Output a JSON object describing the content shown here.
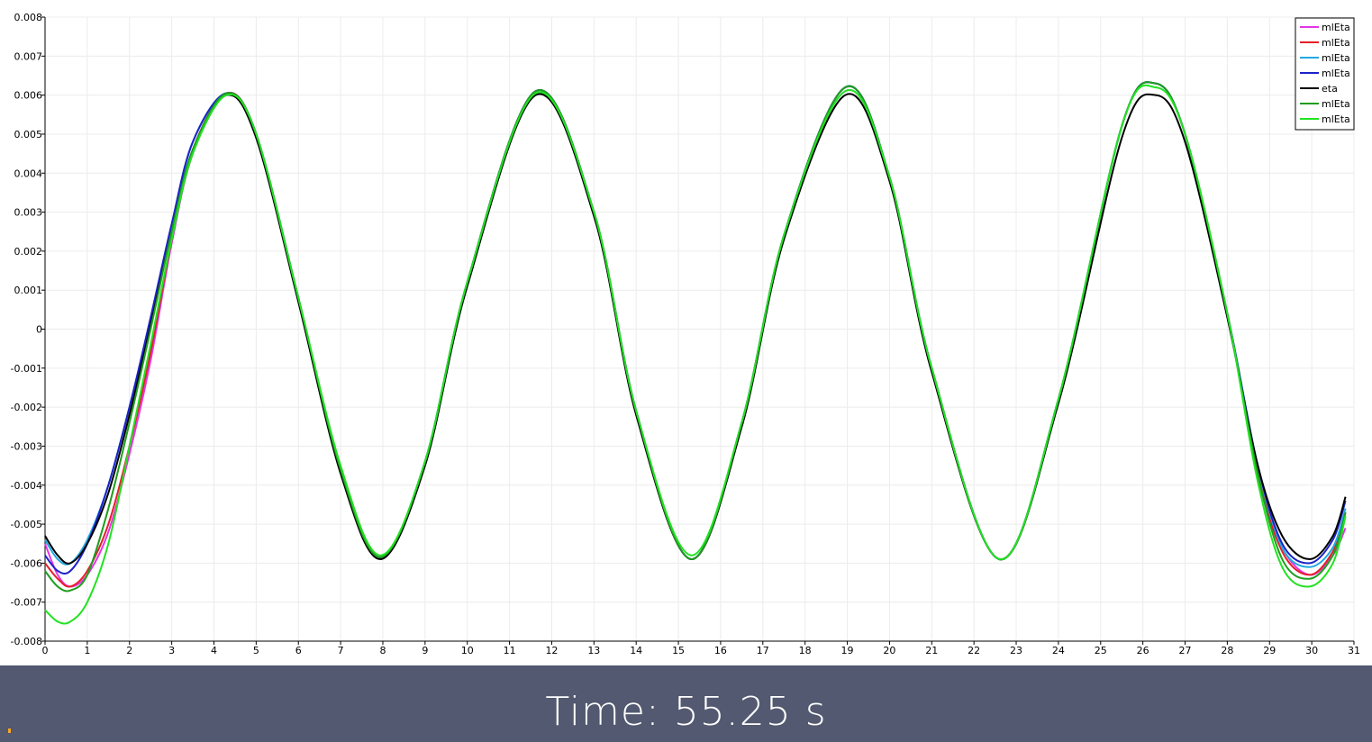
{
  "chart_data": {
    "type": "line",
    "title": "",
    "xlabel": "",
    "ylabel": "",
    "xlim": [
      0,
      31
    ],
    "ylim": [
      -0.008,
      0.008
    ],
    "xticks": [
      0,
      1,
      2,
      3,
      4,
      5,
      6,
      7,
      8,
      9,
      10,
      11,
      12,
      13,
      14,
      15,
      16,
      17,
      18,
      19,
      20,
      21,
      22,
      23,
      24,
      25,
      26,
      27,
      28,
      29,
      30,
      31
    ],
    "xtick_labels": [
      "0",
      "1",
      "2",
      "3",
      "4",
      "5",
      "6",
      "7",
      "8",
      "9",
      "10",
      "11",
      "12",
      "13",
      "14",
      "15",
      "16",
      "17",
      "18",
      "19",
      "20",
      "21",
      "22",
      "23",
      "24",
      "25",
      "26",
      "27",
      "28",
      "29",
      "30",
      "31"
    ],
    "yticks": [
      -0.008,
      -0.007,
      -0.006,
      -0.005,
      -0.004,
      -0.003,
      -0.002,
      -0.001,
      0,
      0.001,
      0.002,
      0.003,
      0.004,
      0.005,
      0.006,
      0.007,
      0.008
    ],
    "ytick_labels": [
      "-0.008",
      "-0.007",
      "-0.006",
      "-0.005",
      "-0.004",
      "-0.003",
      "-0.002",
      "-0.001",
      "0",
      "0.001",
      "0.002",
      "0.003",
      "0.004",
      "0.005",
      "0.006",
      "0.007",
      "0.008"
    ],
    "grid": true,
    "legend_position": "top-right",
    "series": [
      {
        "name": "mlEta",
        "color": "#e535e5",
        "x": [
          0,
          0.3,
          0.6,
          1.0,
          1.5,
          2.0,
          2.5,
          3.0,
          3.5,
          4.3,
          5.0,
          6.0,
          7.0,
          7.95,
          9.0,
          10.0,
          11.62,
          13.0,
          14.0,
          15.3,
          16.5,
          17.5,
          18.95,
          20.0,
          21.0,
          22.6,
          24.0,
          25.5,
          26.3,
          27.0,
          28.0,
          28.7,
          29.3,
          29.95,
          30.5,
          30.8
        ],
        "y": [
          -0.0055,
          -0.0063,
          -0.0066,
          -0.0063,
          -0.0052,
          -0.0032,
          -0.0008,
          0.0022,
          0.0045,
          0.00605,
          0.005,
          0.0008,
          -0.0036,
          -0.00585,
          -0.0034,
          0.0012,
          0.0061,
          0.003,
          -0.0021,
          -0.0059,
          -0.0024,
          0.0024,
          0.0062,
          0.0039,
          -0.001,
          -0.0059,
          -0.0018,
          0.0052,
          0.0063,
          0.005,
          0.0004,
          -0.0037,
          -0.0056,
          -0.0063,
          -0.0058,
          -0.0051
        ]
      },
      {
        "name": "mlEta",
        "color": "#e5202a",
        "x": [
          0,
          0.3,
          0.6,
          1.0,
          1.5,
          2.0,
          2.5,
          3.0,
          3.5,
          4.3,
          5.0,
          6.0,
          7.0,
          7.95,
          9.0,
          10.0,
          11.62,
          13.0,
          14.0,
          15.3,
          16.5,
          17.5,
          18.95,
          20.0,
          21.0,
          22.6,
          24.0,
          25.5,
          26.3,
          27.0,
          28.0,
          28.7,
          29.3,
          29.95,
          30.5,
          30.8
        ],
        "y": [
          -0.006,
          -0.0064,
          -0.0066,
          -0.0062,
          -0.005,
          -0.003,
          -0.0006,
          0.0023,
          0.0046,
          0.00605,
          0.005,
          0.0008,
          -0.0036,
          -0.00585,
          -0.0034,
          0.0012,
          0.0061,
          0.003,
          -0.0021,
          -0.0059,
          -0.0024,
          0.0024,
          0.0062,
          0.0039,
          -0.001,
          -0.0059,
          -0.0018,
          0.0052,
          0.0063,
          0.005,
          0.0004,
          -0.0036,
          -0.0057,
          -0.0063,
          -0.0057,
          -0.0047
        ]
      },
      {
        "name": "mlEta",
        "color": "#22a8e0",
        "x": [
          0,
          0.3,
          0.6,
          1.0,
          1.5,
          2.0,
          2.5,
          3.0,
          3.5,
          4.3,
          5.0,
          6.0,
          7.0,
          7.95,
          9.0,
          10.0,
          11.62,
          13.0,
          14.0,
          15.3,
          16.5,
          17.5,
          18.95,
          20.0,
          21.0,
          22.6,
          24.0,
          25.5,
          26.3,
          27.0,
          28.0,
          28.7,
          29.3,
          29.95,
          30.5,
          30.8
        ],
        "y": [
          -0.0054,
          -0.0059,
          -0.006,
          -0.0054,
          -0.004,
          -0.002,
          0.0002,
          0.0026,
          0.0048,
          0.00605,
          0.005,
          0.0008,
          -0.0036,
          -0.00585,
          -0.0034,
          0.0012,
          0.0061,
          0.003,
          -0.0021,
          -0.0059,
          -0.0024,
          0.0024,
          0.0062,
          0.0039,
          -0.001,
          -0.0059,
          -0.0018,
          0.0052,
          0.0063,
          0.005,
          0.0004,
          -0.0034,
          -0.0056,
          -0.0061,
          -0.0056,
          -0.0046
        ]
      },
      {
        "name": "mlEta",
        "color": "#1c22c8",
        "x": [
          0,
          0.3,
          0.6,
          1.0,
          1.5,
          2.0,
          2.5,
          3.0,
          3.5,
          4.3,
          5.0,
          6.0,
          7.0,
          7.95,
          9.0,
          10.0,
          11.62,
          13.0,
          14.0,
          15.3,
          16.5,
          17.5,
          18.95,
          20.0,
          21.0,
          22.6,
          24.0,
          25.5,
          26.3,
          27.0,
          28.0,
          28.7,
          29.3,
          29.95,
          30.5,
          30.8
        ],
        "y": [
          -0.0058,
          -0.0062,
          -0.0062,
          -0.0055,
          -0.004,
          -0.002,
          0.0003,
          0.0027,
          0.0048,
          0.00605,
          0.005,
          0.0008,
          -0.0036,
          -0.00585,
          -0.0034,
          0.0012,
          0.0061,
          0.003,
          -0.0021,
          -0.0059,
          -0.0024,
          0.0024,
          0.0062,
          0.0039,
          -0.001,
          -0.0059,
          -0.0018,
          0.0052,
          0.0063,
          0.005,
          0.0004,
          -0.0034,
          -0.0055,
          -0.006,
          -0.0054,
          -0.0044
        ]
      },
      {
        "name": "eta",
        "color": "#000000",
        "x": [
          0,
          0.3,
          0.6,
          1.0,
          1.5,
          2.0,
          2.5,
          3.0,
          3.5,
          4.3,
          5.0,
          6.0,
          7.0,
          7.95,
          9.0,
          10.0,
          11.62,
          13.0,
          14.0,
          15.3,
          16.5,
          17.5,
          18.95,
          20.0,
          21.0,
          22.6,
          24.0,
          25.5,
          26.3,
          27.0,
          28.0,
          28.7,
          29.3,
          29.95,
          30.5,
          30.8
        ],
        "y": [
          -0.0053,
          -0.0058,
          -0.006,
          -0.0055,
          -0.0042,
          -0.0022,
          0.0001,
          0.0025,
          0.0046,
          0.006,
          0.0049,
          0.0007,
          -0.0037,
          -0.0059,
          -0.0035,
          0.0011,
          0.006,
          0.0029,
          -0.0022,
          -0.0059,
          -0.0025,
          0.0023,
          0.006,
          0.0038,
          -0.0011,
          -0.0059,
          -0.0019,
          0.0049,
          0.006,
          0.0048,
          0.0003,
          -0.0034,
          -0.0053,
          -0.0059,
          -0.0053,
          -0.0043
        ]
      },
      {
        "name": "mlEta",
        "color": "#1e9e1e",
        "x": [
          0,
          0.3,
          0.6,
          1.0,
          1.5,
          2.0,
          2.5,
          3.0,
          3.5,
          4.3,
          5.0,
          6.0,
          7.0,
          7.95,
          9.0,
          10.0,
          11.62,
          13.0,
          14.0,
          15.3,
          16.5,
          17.5,
          18.95,
          20.0,
          21.0,
          22.6,
          24.0,
          25.5,
          26.3,
          27.0,
          28.0,
          28.7,
          29.3,
          29.95,
          30.5,
          30.8
        ],
        "y": [
          -0.0062,
          -0.0066,
          -0.0067,
          -0.0063,
          -0.0046,
          -0.0024,
          0.0,
          0.0025,
          0.0046,
          0.00605,
          0.005,
          0.0008,
          -0.0036,
          -0.00585,
          -0.0034,
          0.0012,
          0.0061,
          0.003,
          -0.0021,
          -0.0059,
          -0.0024,
          0.0024,
          0.0062,
          0.0039,
          -0.001,
          -0.0059,
          -0.0018,
          0.0052,
          0.0063,
          0.005,
          0.0004,
          -0.0036,
          -0.0059,
          -0.0064,
          -0.0058,
          -0.0047
        ]
      },
      {
        "name": "mlEta",
        "color": "#21e221",
        "x": [
          0,
          0.3,
          0.6,
          1.0,
          1.5,
          2.0,
          2.5,
          3.0,
          3.5,
          4.3,
          5.0,
          6.0,
          7.0,
          7.95,
          9.0,
          10.0,
          11.62,
          13.0,
          14.0,
          15.3,
          16.5,
          17.5,
          18.95,
          20.0,
          21.0,
          22.6,
          24.0,
          25.5,
          26.3,
          27.0,
          28.0,
          28.7,
          29.3,
          29.95,
          30.5,
          30.8
        ],
        "y": [
          -0.0072,
          -0.0075,
          -0.0075,
          -0.007,
          -0.0055,
          -0.003,
          -0.0004,
          0.0023,
          0.0045,
          0.006,
          0.005,
          0.0008,
          -0.0035,
          -0.0058,
          -0.0034,
          0.0012,
          0.00605,
          0.003,
          -0.0021,
          -0.0058,
          -0.0024,
          0.0024,
          0.0061,
          0.0039,
          -0.001,
          -0.0059,
          -0.0018,
          0.0052,
          0.0062,
          0.005,
          0.0004,
          -0.0038,
          -0.0061,
          -0.0066,
          -0.006,
          -0.0048
        ]
      }
    ]
  },
  "time_label": "Time:  55.25 s"
}
